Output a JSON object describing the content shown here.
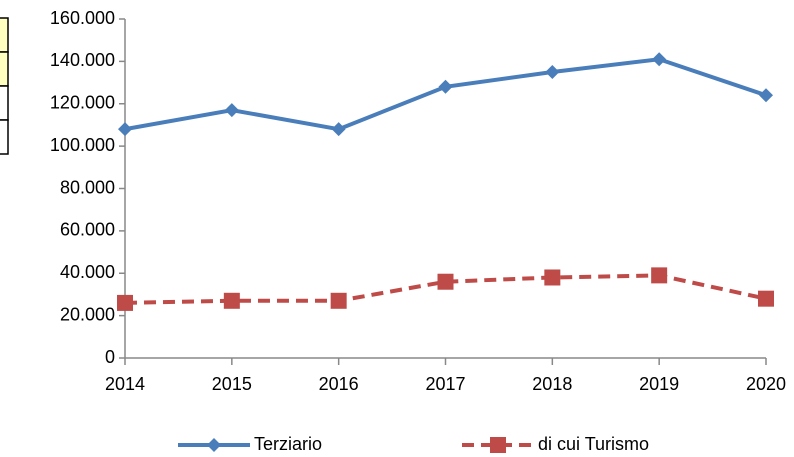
{
  "chart_data": {
    "type": "line",
    "categories": [
      "2014",
      "2015",
      "2016",
      "2017",
      "2018",
      "2019",
      "2020"
    ],
    "series": [
      {
        "name": "Terziario",
        "color": "#4a7ebb",
        "marker": "diamond",
        "dash": "solid",
        "values": [
          108000,
          117000,
          108000,
          128000,
          135000,
          141000,
          124000
        ]
      },
      {
        "name": "di cui Turismo",
        "color": "#be4b48",
        "marker": "square",
        "dash": "dashed",
        "values": [
          26000,
          27000,
          27000,
          36000,
          38000,
          39000,
          28000
        ]
      }
    ],
    "ylim": [
      0,
      160000
    ],
    "yticks": [
      0,
      {
        "value": 20000,
        "label": "20.000"
      },
      {
        "value": 40000,
        "label": "40.000"
      },
      {
        "value": 60000,
        "label": "60.000"
      },
      {
        "value": 80000,
        "label": "80.000"
      },
      {
        "value": 100000,
        "label": "100.000"
      },
      {
        "value": 120000,
        "label": "120.000"
      },
      {
        "value": 140000,
        "label": "140.000"
      },
      {
        "value": 160000,
        "label": "160.000"
      }
    ],
    "grid": false,
    "legend": "bottom"
  }
}
